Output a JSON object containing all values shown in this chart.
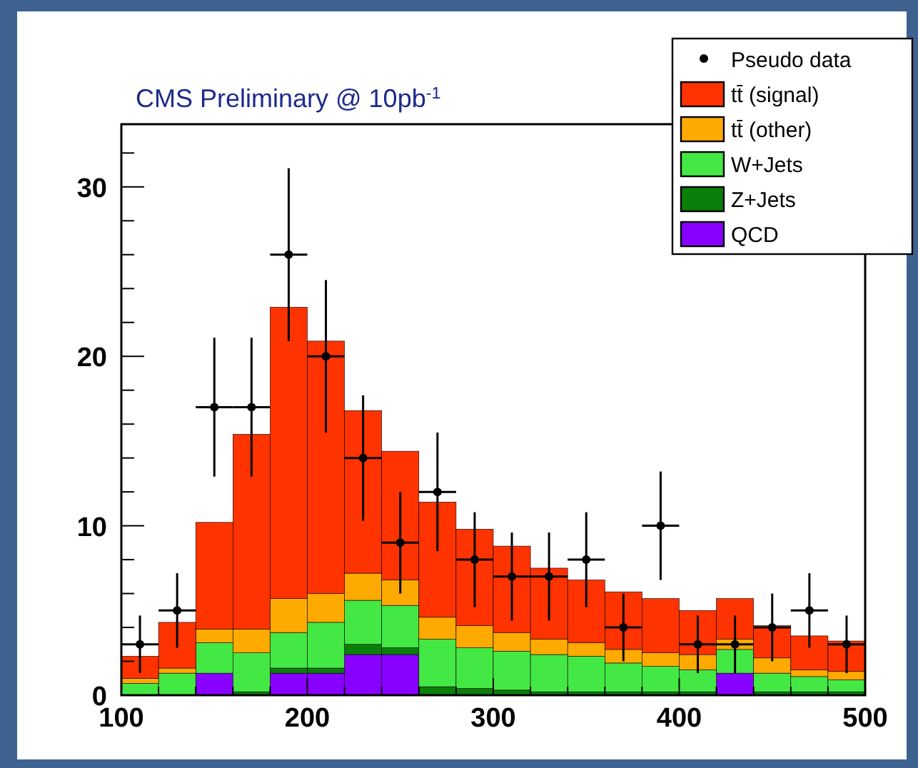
{
  "chart_data": {
    "type": "bar",
    "title": "CMS Preliminary @ 10pb$^{-1}$",
    "x": [
      110,
      130,
      150,
      170,
      190,
      210,
      230,
      250,
      270,
      290,
      310,
      330,
      350,
      370,
      390,
      410,
      430,
      450,
      470,
      490
    ],
    "stacked": true,
    "legend": "top right",
    "marker": "circle",
    "xlim": [
      100,
      500
    ],
    "xticks": [
      100,
      {
        "value": 120,
        "label": null
      },
      {
        "value": 140,
        "label": null
      },
      {
        "value": 160,
        "label": null
      },
      {
        "value": 180,
        "label": null
      },
      200,
      {
        "value": 220,
        "label": null
      },
      {
        "value": 240,
        "label": null
      },
      {
        "value": 260,
        "label": null
      },
      {
        "value": 280,
        "label": null
      },
      300,
      {
        "value": 320,
        "label": null
      },
      {
        "value": 340,
        "label": null
      },
      {
        "value": 360,
        "label": null
      },
      {
        "value": 380,
        "label": null
      },
      400,
      {
        "value": 420,
        "label": null
      },
      {
        "value": 440,
        "label": null
      },
      {
        "value": 460,
        "label": null
      },
      {
        "value": 480,
        "label": null
      },
      500
    ],
    "ylim": [
      0,
      33.7
    ],
    "yticks": [
      0,
      {
        "value": 2,
        "label": null
      },
      {
        "value": 4,
        "label": null
      },
      {
        "value": 6,
        "label": null
      },
      {
        "value": 8,
        "label": null
      },
      10,
      {
        "value": 12,
        "label": null
      },
      {
        "value": 14,
        "label": null
      },
      {
        "value": 16,
        "label": null
      },
      {
        "value": 18,
        "label": null
      },
      20,
      {
        "value": 22,
        "label": null
      },
      {
        "value": 24,
        "label": null
      },
      {
        "value": 26,
        "label": null
      },
      {
        "value": 28,
        "label": null
      },
      30,
      {
        "value": 32,
        "label": null
      }
    ],
    "series": [
      {
        "name": "QCD",
        "color": "#8800ff",
        "values": [
          0,
          0,
          1.3,
          0,
          1.3,
          1.3,
          2.4,
          2.4,
          0,
          0,
          0,
          0,
          0,
          0,
          0,
          0,
          1.3,
          0,
          0,
          0
        ]
      },
      {
        "name": "Z+Jets",
        "color": "#0a7f0a",
        "values": [
          0,
          0,
          0,
          0.2,
          0.3,
          0.3,
          0.6,
          0.4,
          0.5,
          0.4,
          0.3,
          0.2,
          0.2,
          0.2,
          0.2,
          0.2,
          0,
          0.2,
          0.2,
          0.2
        ]
      },
      {
        "name": "W+Jets",
        "color": "#44e844",
        "values": [
          0.7,
          1.3,
          1.8,
          2.3,
          2.1,
          2.7,
          2.6,
          2.5,
          2.8,
          2.4,
          2.3,
          2.2,
          2.1,
          1.7,
          1.5,
          1.3,
          1.4,
          1.1,
          0.9,
          0.7
        ]
      },
      {
        "name": "tt̄ (other)",
        "color": "#ffaa00",
        "values": [
          0.3,
          0.3,
          0.8,
          1.4,
          2.0,
          1.7,
          1.6,
          1.5,
          1.3,
          1.3,
          1.1,
          0.9,
          0.8,
          0.8,
          0.8,
          0.9,
          0.6,
          0.9,
          0.4,
          0.5
        ]
      },
      {
        "name": "tt̄ (signal)",
        "color": "#ff3300",
        "values": [
          1.3,
          2.7,
          6.3,
          11.5,
          17.2,
          14.9,
          9.6,
          7.6,
          6.8,
          5.7,
          5.1,
          4.2,
          3.7,
          3.4,
          3.2,
          2.6,
          2.4,
          1.9,
          2.0,
          1.8
        ]
      },
      {
        "name": "Pseudo data",
        "type": "scatter",
        "color": "#000000",
        "x": [
          110,
          130,
          150,
          170,
          190,
          210,
          230,
          250,
          270,
          290,
          310,
          330,
          350,
          370,
          390,
          410,
          430,
          450,
          470,
          490
        ],
        "values": [
          3,
          5,
          17,
          17,
          26,
          20,
          14,
          9,
          12,
          8,
          7,
          7,
          8,
          4,
          10,
          3,
          3,
          4,
          5,
          3
        ],
        "errors": [
          1.7,
          2.2,
          4.1,
          4.1,
          5.1,
          4.5,
          3.7,
          3,
          3.5,
          2.8,
          2.6,
          2.6,
          2.8,
          2,
          3.2,
          1.7,
          1.7,
          2,
          2.2,
          1.7
        ],
        "xerrors": [
          10,
          10,
          10,
          10,
          10,
          10,
          10,
          10,
          10,
          10,
          10,
          10,
          10,
          10,
          10,
          10,
          10,
          10,
          10,
          10
        ]
      }
    ]
  }
}
